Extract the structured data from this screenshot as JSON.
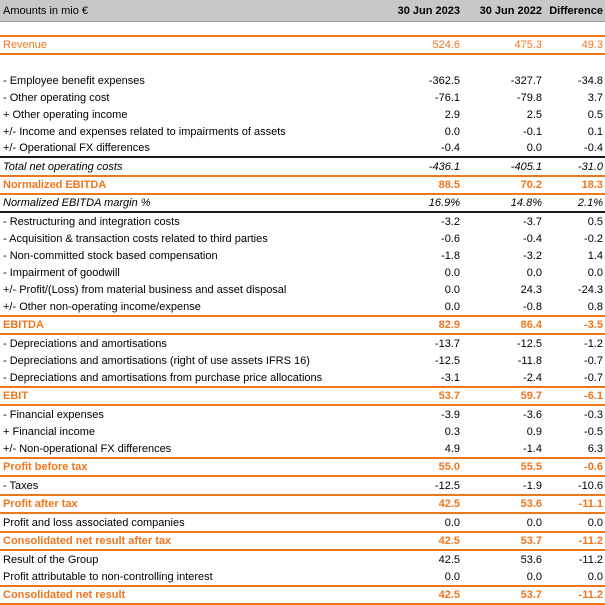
{
  "colors": {
    "accent_orange": "#F0761E",
    "header_background": "#C8C8C8",
    "rule_black": "#1a1a1a"
  },
  "table": {
    "columns": [
      "Amounts in mio €",
      "30 Jun 2023",
      "30 Jun 2022",
      "Difference"
    ],
    "rows": [
      {
        "label": "Revenue",
        "values": [
          "524.6",
          "475.3",
          "49.3"
        ],
        "style": "orange",
        "gap_before": 13
      },
      {
        "label": "- Employee benefit expenses",
        "values": [
          "-362.5",
          "-327.7",
          "-34.8"
        ],
        "style": "normal",
        "gap_before": 17
      },
      {
        "label": "- Other operating cost",
        "values": [
          "-76.1",
          "-79.8",
          "3.7"
        ],
        "style": "normal"
      },
      {
        "label": "+ Other operating income",
        "values": [
          "2.9",
          "2.5",
          "0.5"
        ],
        "style": "normal"
      },
      {
        "label": "+/- Income and expenses related to impairments of assets",
        "values": [
          "0.0",
          "-0.1",
          "0.1"
        ],
        "style": "normal"
      },
      {
        "label": "+/- Operational FX differences",
        "values": [
          "-0.4",
          "0.0",
          "-0.4"
        ],
        "style": "normal",
        "border_bottom": "black"
      },
      {
        "label": "Total net operating costs",
        "values": [
          "-436.1",
          "-405.1",
          "-31.0"
        ],
        "style": "italic"
      },
      {
        "label": "Normalized EBITDA",
        "values": [
          "88.5",
          "70.2",
          "18.3"
        ],
        "style": "orange_bold"
      },
      {
        "label": "Normalized EBITDA margin %",
        "values": [
          "16.9%",
          "14.8%",
          "2.1%"
        ],
        "style": "italic",
        "border_bottom": "black"
      },
      {
        "label": "- Restructuring and integration costs",
        "values": [
          "-3.2",
          "-3.7",
          "0.5"
        ],
        "style": "normal"
      },
      {
        "label": "- Acquisition & transaction costs related to third parties",
        "values": [
          "-0.6",
          "-0.4",
          "-0.2"
        ],
        "style": "normal"
      },
      {
        "label": "- Non-committed stock based compensation",
        "values": [
          "-1.8",
          "-3.2",
          "1.4"
        ],
        "style": "normal"
      },
      {
        "label": "- Impairment of goodwill",
        "values": [
          "0.0",
          "0.0",
          "0.0"
        ],
        "style": "normal"
      },
      {
        "label": "+/- Profit/(Loss) from material business and asset disposal",
        "values": [
          "0.0",
          "24.3",
          "-24.3"
        ],
        "style": "normal"
      },
      {
        "label": "+/- Other non-operating income/expense",
        "values": [
          "0.0",
          "-0.8",
          "0.8"
        ],
        "style": "normal"
      },
      {
        "label": "EBITDA",
        "values": [
          "82.9",
          "86.4",
          "-3.5"
        ],
        "style": "orange_bold"
      },
      {
        "label": "- Depreciations and amortisations",
        "values": [
          "-13.7",
          "-12.5",
          "-1.2"
        ],
        "style": "normal"
      },
      {
        "label": "- Depreciations and amortisations (right of use assets IFRS 16)",
        "values": [
          "-12.5",
          "-11.8",
          "-0.7"
        ],
        "style": "normal"
      },
      {
        "label": "- Depreciations and amortisations from purchase price allocations",
        "values": [
          "-3.1",
          "-2.4",
          "-0.7"
        ],
        "style": "normal"
      },
      {
        "label": "EBIT",
        "values": [
          "53.7",
          "59.7",
          "-6.1"
        ],
        "style": "orange_bold"
      },
      {
        "label": "- Financial expenses",
        "values": [
          "-3.9",
          "-3.6",
          "-0.3"
        ],
        "style": "normal"
      },
      {
        "label": "+ Financial income",
        "values": [
          "0.3",
          "0.9",
          "-0.5"
        ],
        "style": "normal"
      },
      {
        "label": "+/- Non-operational FX differences",
        "values": [
          "4.9",
          "-1.4",
          "6.3"
        ],
        "style": "normal"
      },
      {
        "label": "Profit before tax",
        "values": [
          "55.0",
          "55.5",
          "-0.6"
        ],
        "style": "orange_bold"
      },
      {
        "label": "- Taxes",
        "values": [
          "-12.5",
          "-1.9",
          "-10.6"
        ],
        "style": "normal"
      },
      {
        "label": "Profit after tax",
        "values": [
          "42.5",
          "53.6",
          "-11.1"
        ],
        "style": "orange_bold"
      },
      {
        "label": "Profit and loss associated companies",
        "values": [
          "0.0",
          "0.0",
          "0.0"
        ],
        "style": "normal"
      },
      {
        "label": "Consolidated net result after tax",
        "values": [
          "42.5",
          "53.7",
          "-11.2"
        ],
        "style": "orange_bold"
      },
      {
        "label": "Result of the Group",
        "values": [
          "42.5",
          "53.6",
          "-11.2"
        ],
        "style": "normal"
      },
      {
        "label": "Profit attributable to non-controlling interest",
        "values": [
          "0.0",
          "0.0",
          "0.0"
        ],
        "style": "normal"
      },
      {
        "label": "Consolidated net result",
        "values": [
          "42.5",
          "53.7",
          "-11.2"
        ],
        "style": "orange_bold"
      }
    ]
  }
}
